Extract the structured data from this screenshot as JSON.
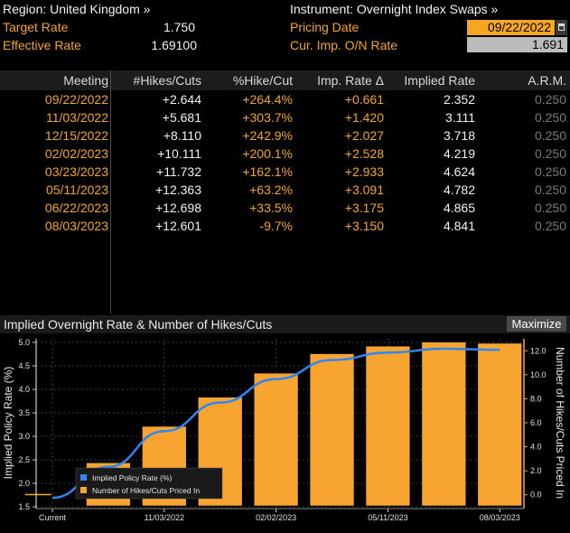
{
  "header": {
    "region_label": "Region: United Kingdom »",
    "target_rate_label": "Target Rate",
    "target_rate_value": "1.750",
    "effective_rate_label": "Effective Rate",
    "effective_rate_value": "1.69100",
    "instrument_label": "Instrument: Overnight Index Swaps »",
    "pricing_date_label": "Pricing Date",
    "pricing_date_value": "09/22/2022",
    "cur_imp_label": "Cur. Imp. O/N Rate",
    "cur_imp_value": "1.691"
  },
  "table": {
    "columns": [
      "Meeting",
      "#Hikes/Cuts",
      "%Hike/Cut",
      "Imp. Rate Δ",
      "Implied Rate",
      "A.R.M."
    ],
    "rows": [
      [
        "09/22/2022",
        "+2.644",
        "+264.4%",
        "+0.661",
        "2.352",
        "0.250"
      ],
      [
        "11/03/2022",
        "+5.681",
        "+303.7%",
        "+1.420",
        "3.111",
        "0.250"
      ],
      [
        "12/15/2022",
        "+8.110",
        "+242.9%",
        "+2.027",
        "3.718",
        "0.250"
      ],
      [
        "02/02/2023",
        "+10.111",
        "+200.1%",
        "+2.528",
        "4.219",
        "0.250"
      ],
      [
        "03/23/2023",
        "+11.732",
        "+162.1%",
        "+2.933",
        "4.624",
        "0.250"
      ],
      [
        "05/11/2023",
        "+12.363",
        "+63.2%",
        "+3.091",
        "4.782",
        "0.250"
      ],
      [
        "06/22/2023",
        "+12.698",
        "+33.5%",
        "+3.175",
        "4.865",
        "0.250"
      ],
      [
        "08/03/2023",
        "+12.601",
        "-9.7%",
        "+3.150",
        "4.841",
        "0.250"
      ]
    ]
  },
  "chart_header": {
    "title": "Implied Overnight Rate & Number of Hikes/Cuts",
    "maximize_label": "Maximize"
  },
  "chart_data": {
    "type": "bar",
    "categories": [
      "Current",
      "09/22/2022",
      "11/03/2022",
      "12/15/2022",
      "02/02/2023",
      "03/23/2023",
      "05/11/2023",
      "06/22/2023",
      "08/03/2023"
    ],
    "x_tick_labels": [
      "Current",
      "11/03/2022",
      "02/02/2023",
      "05/11/2023",
      "08/03/2023"
    ],
    "ylabel_left": "Implied Policy Rate (%)",
    "ylabel_right": "Number of Hikes/Cuts Priced In",
    "ylim_left": [
      1.5,
      5.0
    ],
    "ylim_right": [
      -1.0,
      13.0
    ],
    "yticks_left": [
      "1.5",
      "2.0",
      "2.5",
      "3.0",
      "3.5",
      "4.0",
      "4.5",
      "5.0"
    ],
    "yticks_right": [
      "0.0",
      "2.0",
      "4.0",
      "6.0",
      "8.0",
      "10.0",
      "12.0"
    ],
    "series": [
      {
        "name": "Implied Policy Rate (%)",
        "type": "line",
        "axis": "left",
        "color": "#2e86f5",
        "values": [
          1.691,
          2.352,
          3.111,
          3.718,
          4.219,
          4.624,
          4.782,
          4.865,
          4.841
        ]
      },
      {
        "name": "Number of Hikes/Cuts Priced In",
        "type": "bar",
        "axis": "right",
        "color": "#f7a530",
        "values": [
          0,
          2.644,
          5.681,
          8.11,
          10.111,
          11.732,
          12.363,
          12.698,
          12.601
        ]
      }
    ],
    "legend": "bottom-left",
    "grid": true
  }
}
